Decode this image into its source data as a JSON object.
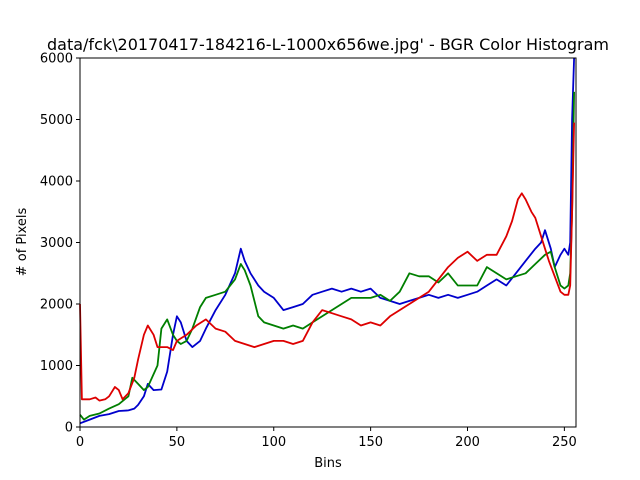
{
  "chart_data": {
    "type": "line",
    "title": "data/fck\\20170417-184216-L-1000x656we.jpg' - BGR Color Histogram",
    "xlabel": "Bins",
    "ylabel": "# of Pixels",
    "xlim": [
      0,
      256
    ],
    "ylim": [
      0,
      6000
    ],
    "xticks": [
      0,
      50,
      100,
      150,
      200,
      250
    ],
    "yticks": [
      0,
      1000,
      2000,
      3000,
      4000,
      5000,
      6000
    ],
    "grid": false,
    "series": [
      {
        "color": "#0000cc",
        "points": [
          [
            0,
            60
          ],
          [
            5,
            120
          ],
          [
            10,
            180
          ],
          [
            15,
            210
          ],
          [
            20,
            260
          ],
          [
            25,
            270
          ],
          [
            28,
            300
          ],
          [
            30,
            360
          ],
          [
            33,
            500
          ],
          [
            35,
            700
          ],
          [
            38,
            600
          ],
          [
            42,
            610
          ],
          [
            45,
            900
          ],
          [
            48,
            1500
          ],
          [
            50,
            1800
          ],
          [
            52,
            1700
          ],
          [
            55,
            1400
          ],
          [
            58,
            1300
          ],
          [
            62,
            1400
          ],
          [
            65,
            1600
          ],
          [
            70,
            1900
          ],
          [
            75,
            2150
          ],
          [
            80,
            2500
          ],
          [
            83,
            2900
          ],
          [
            85,
            2700
          ],
          [
            88,
            2500
          ],
          [
            92,
            2300
          ],
          [
            95,
            2200
          ],
          [
            100,
            2100
          ],
          [
            105,
            1900
          ],
          [
            110,
            1950
          ],
          [
            115,
            2000
          ],
          [
            120,
            2150
          ],
          [
            125,
            2200
          ],
          [
            130,
            2250
          ],
          [
            135,
            2200
          ],
          [
            140,
            2250
          ],
          [
            145,
            2200
          ],
          [
            150,
            2250
          ],
          [
            155,
            2100
          ],
          [
            160,
            2050
          ],
          [
            165,
            2000
          ],
          [
            170,
            2050
          ],
          [
            175,
            2100
          ],
          [
            180,
            2150
          ],
          [
            185,
            2100
          ],
          [
            190,
            2150
          ],
          [
            195,
            2100
          ],
          [
            200,
            2150
          ],
          [
            205,
            2200
          ],
          [
            210,
            2300
          ],
          [
            215,
            2400
          ],
          [
            220,
            2300
          ],
          [
            225,
            2500
          ],
          [
            230,
            2700
          ],
          [
            235,
            2900
          ],
          [
            238,
            3000
          ],
          [
            240,
            3200
          ],
          [
            243,
            2900
          ],
          [
            245,
            2600
          ],
          [
            248,
            2800
          ],
          [
            250,
            2900
          ],
          [
            252,
            2800
          ],
          [
            253,
            3000
          ],
          [
            254,
            5000
          ],
          [
            255,
            6000
          ]
        ]
      },
      {
        "color": "#007f00",
        "points": [
          [
            0,
            200
          ],
          [
            2,
            120
          ],
          [
            5,
            180
          ],
          [
            10,
            220
          ],
          [
            15,
            300
          ],
          [
            20,
            370
          ],
          [
            25,
            500
          ],
          [
            27,
            800
          ],
          [
            30,
            700
          ],
          [
            33,
            600
          ],
          [
            35,
            650
          ],
          [
            40,
            1000
          ],
          [
            42,
            1600
          ],
          [
            45,
            1750
          ],
          [
            48,
            1500
          ],
          [
            50,
            1400
          ],
          [
            52,
            1350
          ],
          [
            55,
            1400
          ],
          [
            58,
            1600
          ],
          [
            62,
            1950
          ],
          [
            65,
            2100
          ],
          [
            70,
            2150
          ],
          [
            75,
            2200
          ],
          [
            80,
            2400
          ],
          [
            83,
            2650
          ],
          [
            85,
            2550
          ],
          [
            88,
            2300
          ],
          [
            92,
            1800
          ],
          [
            95,
            1700
          ],
          [
            100,
            1650
          ],
          [
            105,
            1600
          ],
          [
            110,
            1650
          ],
          [
            115,
            1600
          ],
          [
            120,
            1700
          ],
          [
            125,
            1800
          ],
          [
            130,
            1900
          ],
          [
            135,
            2000
          ],
          [
            140,
            2100
          ],
          [
            145,
            2100
          ],
          [
            150,
            2100
          ],
          [
            155,
            2150
          ],
          [
            160,
            2050
          ],
          [
            165,
            2200
          ],
          [
            170,
            2500
          ],
          [
            175,
            2450
          ],
          [
            180,
            2450
          ],
          [
            185,
            2350
          ],
          [
            190,
            2500
          ],
          [
            195,
            2300
          ],
          [
            200,
            2300
          ],
          [
            205,
            2300
          ],
          [
            210,
            2600
          ],
          [
            215,
            2500
          ],
          [
            220,
            2400
          ],
          [
            225,
            2450
          ],
          [
            230,
            2500
          ],
          [
            235,
            2650
          ],
          [
            240,
            2800
          ],
          [
            243,
            2850
          ],
          [
            245,
            2600
          ],
          [
            248,
            2300
          ],
          [
            250,
            2250
          ],
          [
            252,
            2300
          ],
          [
            253,
            2500
          ],
          [
            254,
            3500
          ],
          [
            255,
            5450
          ]
        ]
      },
      {
        "color": "#dd0000",
        "points": [
          [
            0,
            2000
          ],
          [
            1,
            450
          ],
          [
            5,
            450
          ],
          [
            8,
            480
          ],
          [
            10,
            430
          ],
          [
            13,
            450
          ],
          [
            15,
            500
          ],
          [
            18,
            650
          ],
          [
            20,
            600
          ],
          [
            22,
            450
          ],
          [
            25,
            550
          ],
          [
            28,
            800
          ],
          [
            30,
            1100
          ],
          [
            33,
            1500
          ],
          [
            35,
            1650
          ],
          [
            38,
            1500
          ],
          [
            40,
            1300
          ],
          [
            45,
            1300
          ],
          [
            48,
            1250
          ],
          [
            50,
            1400
          ],
          [
            55,
            1500
          ],
          [
            60,
            1650
          ],
          [
            65,
            1750
          ],
          [
            70,
            1600
          ],
          [
            75,
            1550
          ],
          [
            80,
            1400
          ],
          [
            85,
            1350
          ],
          [
            90,
            1300
          ],
          [
            95,
            1350
          ],
          [
            100,
            1400
          ],
          [
            105,
            1400
          ],
          [
            110,
            1350
          ],
          [
            115,
            1400
          ],
          [
            120,
            1700
          ],
          [
            125,
            1900
          ],
          [
            130,
            1850
          ],
          [
            135,
            1800
          ],
          [
            140,
            1750
          ],
          [
            145,
            1650
          ],
          [
            150,
            1700
          ],
          [
            155,
            1650
          ],
          [
            160,
            1800
          ],
          [
            165,
            1900
          ],
          [
            170,
            2000
          ],
          [
            175,
            2100
          ],
          [
            180,
            2200
          ],
          [
            185,
            2400
          ],
          [
            190,
            2600
          ],
          [
            195,
            2750
          ],
          [
            200,
            2850
          ],
          [
            205,
            2700
          ],
          [
            210,
            2800
          ],
          [
            215,
            2800
          ],
          [
            220,
            3100
          ],
          [
            223,
            3350
          ],
          [
            226,
            3700
          ],
          [
            228,
            3800
          ],
          [
            230,
            3700
          ],
          [
            233,
            3500
          ],
          [
            235,
            3400
          ],
          [
            238,
            3100
          ],
          [
            240,
            2900
          ],
          [
            242,
            2700
          ],
          [
            245,
            2450
          ],
          [
            248,
            2200
          ],
          [
            250,
            2150
          ],
          [
            252,
            2150
          ],
          [
            253,
            2300
          ],
          [
            254,
            3500
          ],
          [
            255,
            4950
          ]
        ]
      }
    ]
  }
}
